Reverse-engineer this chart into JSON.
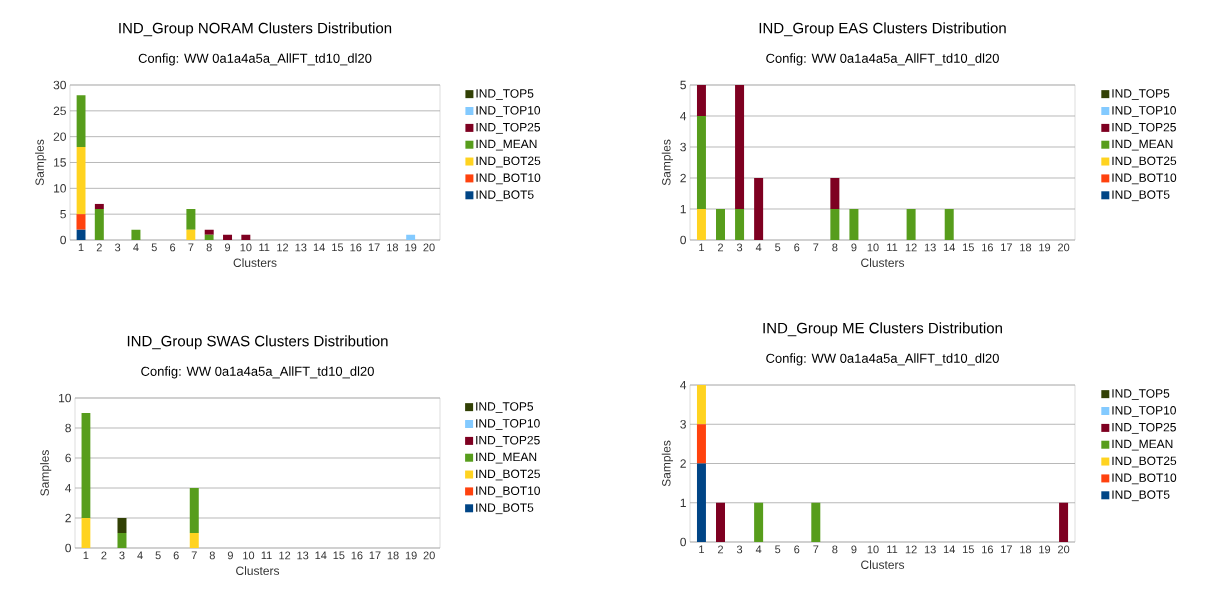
{
  "chart_data": [
    {
      "type": "bar",
      "title": "IND_Group NORAM Clusters Distribution",
      "subtitle": "Config: WW 0a1a4a5a_AllFT_td10_dl20",
      "xlabel": "Clusters",
      "ylabel": "Samples",
      "categories": [
        "1",
        "2",
        "3",
        "4",
        "5",
        "6",
        "7",
        "8",
        "9",
        "10",
        "11",
        "12",
        "13",
        "14",
        "15",
        "16",
        "17",
        "18",
        "19",
        "20"
      ],
      "stacked": true,
      "grid": "y",
      "legend": "right",
      "ylim": [
        0,
        30
      ],
      "yticks": [
        0,
        5,
        10,
        15,
        20,
        25,
        30
      ],
      "series": [
        {
          "name": "IND_BOT5",
          "color": "#004586",
          "values": [
            2,
            0,
            0,
            0,
            0,
            0,
            0,
            0,
            0,
            0,
            0,
            0,
            0,
            0,
            0,
            0,
            0,
            0,
            0,
            0
          ]
        },
        {
          "name": "IND_BOT10",
          "color": "#ff420e",
          "values": [
            3,
            0,
            0,
            0,
            0,
            0,
            0,
            0,
            0,
            0,
            0,
            0,
            0,
            0,
            0,
            0,
            0,
            0,
            0,
            0
          ]
        },
        {
          "name": "IND_BOT25",
          "color": "#ffd320",
          "values": [
            13,
            0,
            0,
            0,
            0,
            0,
            2,
            0,
            0,
            0,
            0,
            0,
            0,
            0,
            0,
            0,
            0,
            0,
            0,
            0
          ]
        },
        {
          "name": "IND_MEAN",
          "color": "#579d1c",
          "values": [
            10,
            6,
            0,
            2,
            0,
            0,
            4,
            1,
            0,
            0,
            0,
            0,
            0,
            0,
            0,
            0,
            0,
            0,
            0,
            0
          ]
        },
        {
          "name": "IND_TOP25",
          "color": "#7e0021",
          "values": [
            0,
            1,
            0,
            0,
            0,
            0,
            0,
            1,
            1,
            1,
            0,
            0,
            0,
            0,
            0,
            0,
            0,
            0,
            0,
            0
          ]
        },
        {
          "name": "IND_TOP10",
          "color": "#83caff",
          "values": [
            0,
            0,
            0,
            0,
            0,
            0,
            0,
            0,
            0,
            0,
            0,
            0,
            0,
            0,
            0,
            0,
            0,
            0,
            1,
            0
          ]
        },
        {
          "name": "IND_TOP5",
          "color": "#314004",
          "values": [
            0,
            0,
            0,
            0,
            0,
            0,
            0,
            0,
            0,
            0,
            0,
            0,
            0,
            0,
            0,
            0,
            0,
            0,
            0,
            0
          ]
        }
      ]
    },
    {
      "type": "bar",
      "title": "IND_Group EAS Clusters Distribution",
      "subtitle": "Config: WW 0a1a4a5a_AllFT_td10_dl20",
      "xlabel": "Clusters",
      "ylabel": "Samples",
      "categories": [
        "1",
        "2",
        "3",
        "4",
        "5",
        "6",
        "7",
        "8",
        "9",
        "10",
        "11",
        "12",
        "13",
        "14",
        "15",
        "16",
        "17",
        "18",
        "19",
        "20"
      ],
      "stacked": true,
      "grid": "y",
      "legend": "right",
      "ylim": [
        0,
        5
      ],
      "yticks": [
        0,
        1,
        2,
        3,
        4,
        5
      ],
      "series": [
        {
          "name": "IND_BOT5",
          "color": "#004586",
          "values": [
            0,
            0,
            0,
            0,
            0,
            0,
            0,
            0,
            0,
            0,
            0,
            0,
            0,
            0,
            0,
            0,
            0,
            0,
            0,
            0
          ]
        },
        {
          "name": "IND_BOT10",
          "color": "#ff420e",
          "values": [
            0,
            0,
            0,
            0,
            0,
            0,
            0,
            0,
            0,
            0,
            0,
            0,
            0,
            0,
            0,
            0,
            0,
            0,
            0,
            0
          ]
        },
        {
          "name": "IND_BOT25",
          "color": "#ffd320",
          "values": [
            1,
            0,
            0,
            0,
            0,
            0,
            0,
            0,
            0,
            0,
            0,
            0,
            0,
            0,
            0,
            0,
            0,
            0,
            0,
            0
          ]
        },
        {
          "name": "IND_MEAN",
          "color": "#579d1c",
          "values": [
            3,
            1,
            1,
            0,
            0,
            0,
            0,
            1,
            1,
            0,
            0,
            1,
            0,
            1,
            0,
            0,
            0,
            0,
            0,
            0
          ]
        },
        {
          "name": "IND_TOP25",
          "color": "#7e0021",
          "values": [
            1,
            0,
            4,
            2,
            0,
            0,
            0,
            1,
            0,
            0,
            0,
            0,
            0,
            0,
            0,
            0,
            0,
            0,
            0,
            0
          ]
        },
        {
          "name": "IND_TOP10",
          "color": "#83caff",
          "values": [
            0,
            0,
            0,
            0,
            0,
            0,
            0,
            0,
            0,
            0,
            0,
            0,
            0,
            0,
            0,
            0,
            0,
            0,
            0,
            0
          ]
        },
        {
          "name": "IND_TOP5",
          "color": "#314004",
          "values": [
            0,
            0,
            0,
            0,
            0,
            0,
            0,
            0,
            0,
            0,
            0,
            0,
            0,
            0,
            0,
            0,
            0,
            0,
            0,
            0
          ]
        }
      ]
    },
    {
      "type": "bar",
      "title": "IND_Group SWAS Clusters Distribution",
      "subtitle": "Config: WW 0a1a4a5a_AllFT_td10_dl20",
      "xlabel": "Clusters",
      "ylabel": "Samples",
      "categories": [
        "1",
        "2",
        "3",
        "4",
        "5",
        "6",
        "7",
        "8",
        "9",
        "10",
        "11",
        "12",
        "13",
        "14",
        "15",
        "16",
        "17",
        "18",
        "19",
        "20"
      ],
      "stacked": true,
      "grid": "y",
      "legend": "right",
      "ylim": [
        0,
        10
      ],
      "yticks": [
        0,
        2,
        4,
        6,
        8,
        10
      ],
      "series": [
        {
          "name": "IND_BOT5",
          "color": "#004586",
          "values": [
            0,
            0,
            0,
            0,
            0,
            0,
            0,
            0,
            0,
            0,
            0,
            0,
            0,
            0,
            0,
            0,
            0,
            0,
            0,
            0
          ]
        },
        {
          "name": "IND_BOT10",
          "color": "#ff420e",
          "values": [
            0,
            0,
            0,
            0,
            0,
            0,
            0,
            0,
            0,
            0,
            0,
            0,
            0,
            0,
            0,
            0,
            0,
            0,
            0,
            0
          ]
        },
        {
          "name": "IND_BOT25",
          "color": "#ffd320",
          "values": [
            2,
            0,
            0,
            0,
            0,
            0,
            1,
            0,
            0,
            0,
            0,
            0,
            0,
            0,
            0,
            0,
            0,
            0,
            0,
            0
          ]
        },
        {
          "name": "IND_MEAN",
          "color": "#579d1c",
          "values": [
            7,
            0,
            1,
            0,
            0,
            0,
            3,
            0,
            0,
            0,
            0,
            0,
            0,
            0,
            0,
            0,
            0,
            0,
            0,
            0
          ]
        },
        {
          "name": "IND_TOP25",
          "color": "#7e0021",
          "values": [
            0,
            0,
            0,
            0,
            0,
            0,
            0,
            0,
            0,
            0,
            0,
            0,
            0,
            0,
            0,
            0,
            0,
            0,
            0,
            0
          ]
        },
        {
          "name": "IND_TOP10",
          "color": "#83caff",
          "values": [
            0,
            0,
            0,
            0,
            0,
            0,
            0,
            0,
            0,
            0,
            0,
            0,
            0,
            0,
            0,
            0,
            0,
            0,
            0,
            0
          ]
        },
        {
          "name": "IND_TOP5",
          "color": "#314004",
          "values": [
            0,
            0,
            1,
            0,
            0,
            0,
            0,
            0,
            0,
            0,
            0,
            0,
            0,
            0,
            0,
            0,
            0,
            0,
            0,
            0
          ]
        }
      ]
    },
    {
      "type": "bar",
      "title": "IND_Group ME Clusters Distribution",
      "subtitle": "Config: WW 0a1a4a5a_AllFT_td10_dl20",
      "xlabel": "Clusters",
      "ylabel": "Samples",
      "categories": [
        "1",
        "2",
        "3",
        "4",
        "5",
        "6",
        "7",
        "8",
        "9",
        "10",
        "11",
        "12",
        "13",
        "14",
        "15",
        "16",
        "17",
        "18",
        "19",
        "20"
      ],
      "stacked": true,
      "grid": "y",
      "legend": "right",
      "ylim": [
        0,
        4
      ],
      "yticks": [
        0,
        1,
        2,
        3,
        4
      ],
      "series": [
        {
          "name": "IND_BOT5",
          "color": "#004586",
          "values": [
            2,
            0,
            0,
            0,
            0,
            0,
            0,
            0,
            0,
            0,
            0,
            0,
            0,
            0,
            0,
            0,
            0,
            0,
            0,
            0
          ]
        },
        {
          "name": "IND_BOT10",
          "color": "#ff420e",
          "values": [
            1,
            0,
            0,
            0,
            0,
            0,
            0,
            0,
            0,
            0,
            0,
            0,
            0,
            0,
            0,
            0,
            0,
            0,
            0,
            0
          ]
        },
        {
          "name": "IND_BOT25",
          "color": "#ffd320",
          "values": [
            1,
            0,
            0,
            0,
            0,
            0,
            0,
            0,
            0,
            0,
            0,
            0,
            0,
            0,
            0,
            0,
            0,
            0,
            0,
            0
          ]
        },
        {
          "name": "IND_MEAN",
          "color": "#579d1c",
          "values": [
            0,
            0,
            0,
            1,
            0,
            0,
            1,
            0,
            0,
            0,
            0,
            0,
            0,
            0,
            0,
            0,
            0,
            0,
            0,
            0
          ]
        },
        {
          "name": "IND_TOP25",
          "color": "#7e0021",
          "values": [
            0,
            1,
            0,
            0,
            0,
            0,
            0,
            0,
            0,
            0,
            0,
            0,
            0,
            0,
            0,
            0,
            0,
            0,
            0,
            1
          ]
        },
        {
          "name": "IND_TOP10",
          "color": "#83caff",
          "values": [
            0,
            0,
            0,
            0,
            0,
            0,
            0,
            0,
            0,
            0,
            0,
            0,
            0,
            0,
            0,
            0,
            0,
            0,
            0,
            0
          ]
        },
        {
          "name": "IND_TOP5",
          "color": "#314004",
          "values": [
            0,
            0,
            0,
            0,
            0,
            0,
            0,
            0,
            0,
            0,
            0,
            0,
            0,
            0,
            0,
            0,
            0,
            0,
            0,
            0
          ]
        }
      ]
    }
  ]
}
